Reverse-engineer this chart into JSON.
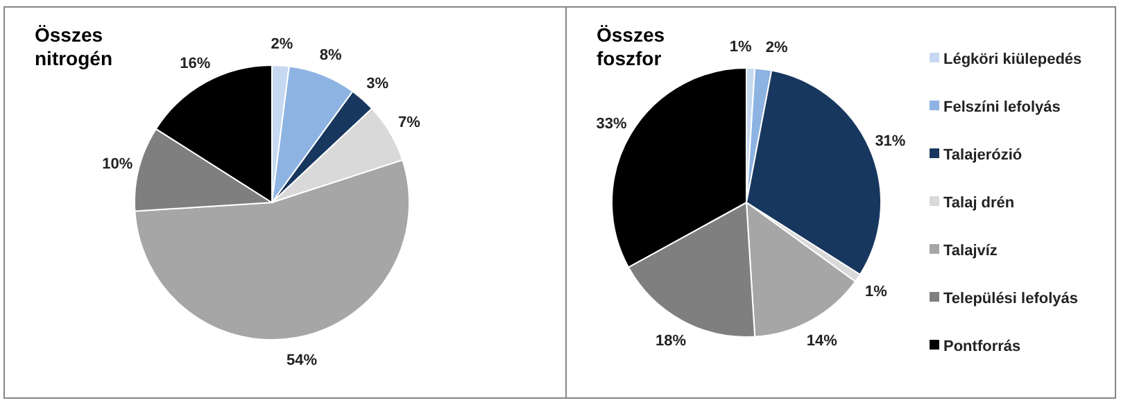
{
  "chart_data": [
    {
      "type": "pie",
      "title": "Összes nitrogén",
      "categories": [
        null,
        null,
        null,
        null,
        null,
        null,
        null
      ],
      "values": [
        2,
        8,
        3,
        7,
        54,
        10,
        16
      ],
      "value_labels": [
        "2%",
        "8%",
        "3%",
        "7%",
        "54%",
        "10%",
        "16%"
      ],
      "colors": [
        "#c6d9f1",
        "#8db3e2",
        "#17375e",
        "#d9d9d9",
        "#a6a6a6",
        "#7f7f7f",
        "#000000"
      ],
      "legend": false
    },
    {
      "type": "pie",
      "title": "Összes foszfor",
      "categories": [
        "Légköri kiülepedés",
        "Felszíni lefolyás",
        "Talajerózió",
        "Talaj drén",
        "Talajvíz",
        "Települési lefolyás",
        "Pontforrás"
      ],
      "values": [
        1,
        2,
        31,
        1,
        14,
        18,
        33
      ],
      "value_labels": [
        "1%",
        "2%",
        "31%",
        "1%",
        "14%",
        "18%",
        "33%"
      ],
      "colors": [
        "#c6d9f1",
        "#8db3e2",
        "#17375e",
        "#d9d9d9",
        "#a6a6a6",
        "#7f7f7f",
        "#000000"
      ],
      "legend": "right"
    }
  ]
}
